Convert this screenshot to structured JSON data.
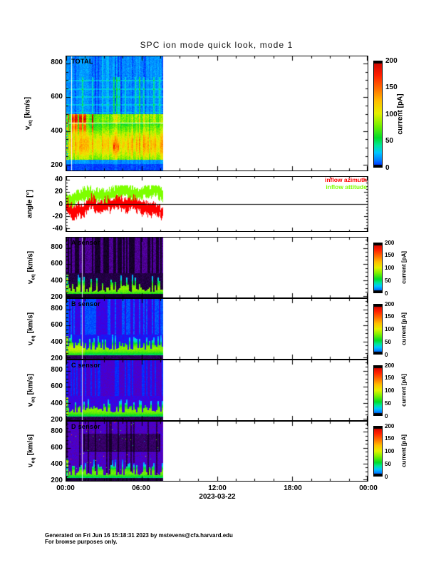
{
  "page": {
    "title": "SPC ion mode quick look, mode 1",
    "date_label": "2023-03-22",
    "footer_line1": "Generated on Fri Jun 16 15:18:31 2023 by mstevens@cfa.harvard.edu",
    "footer_line2": "For browse purposes only."
  },
  "axes": {
    "x_tick_labels": [
      "00:00",
      "06:00",
      "12:00",
      "18:00",
      "00:00"
    ],
    "speed_axis_label": {
      "base": "v",
      "sub": "eq",
      "unit": "[km/s]"
    },
    "angle_axis_label": "angle [°]",
    "colorbar_axis_label": "current [pA]"
  },
  "legend": {
    "inflow_azimuth": {
      "label": "inflow azimuth",
      "color": "#ff0000"
    },
    "inflow_attitude": {
      "label": "inflow attitude",
      "color": "#7dff00"
    }
  },
  "panels": [
    {
      "id": "total",
      "label": "TOTAL"
    },
    {
      "id": "angle",
      "label": ""
    },
    {
      "id": "sensor-a",
      "label": "A sensor"
    },
    {
      "id": "sensor-b",
      "label": "B sensor"
    },
    {
      "id": "sensor-c",
      "label": "C sensor"
    },
    {
      "id": "sensor-d",
      "label": "D sensor"
    }
  ],
  "chart_data": [
    {
      "panel": "TOTAL",
      "type": "heatmap",
      "x_axis": {
        "range_hours": [
          0,
          24
        ],
        "tick_labels": [
          "00:00",
          "06:00",
          "12:00",
          "18:00",
          "00:00"
        ],
        "date": "2023-03-22"
      },
      "y_axis": {
        "label": "v_eq [km/s]",
        "ticks": [
          200,
          400,
          600,
          800
        ],
        "range": [
          166,
          841
        ]
      },
      "colorbar": {
        "label": "current [pA]",
        "ticks": [
          0,
          50,
          100,
          150,
          200
        ],
        "range": [
          0,
          200
        ]
      },
      "data_coverage_hours": [
        0,
        7.7
      ],
      "features": {
        "enhanced_band_kms": [
          230,
          500
        ],
        "band_core_kms": [
          270,
          380
        ],
        "white_marker_line_kms": 448,
        "red_bursts": "currents approaching 150-200 pA near 380-500 km/s during the first ~3 hours",
        "background": "diffuse 10-40 pA cyan-blue signal from 500 to 840 km/s; blue below 230 km/s"
      }
    },
    {
      "panel": "angle",
      "type": "line",
      "y_axis": {
        "label": "angle [°]",
        "ticks": [
          -40,
          -20,
          0,
          20,
          40
        ],
        "range": [
          -45,
          45
        ]
      },
      "series": [
        {
          "name": "inflow azimuth",
          "color": "#ff0000",
          "approx_envelope_deg": [
            -26,
            20
          ],
          "approx_mean_deg": -6
        },
        {
          "name": "inflow attitude",
          "color": "#7dff00",
          "approx_envelope_deg": [
            -13,
            30
          ],
          "approx_mean_deg": 12
        }
      ],
      "zero_reference_line_deg": 0,
      "data_coverage_hours": [
        0,
        7.7
      ]
    },
    {
      "panel": "A sensor",
      "type": "heatmap",
      "y_axis": {
        "label": "v_eq [km/s]",
        "ticks": [
          200,
          400,
          600,
          800
        ],
        "range": [
          183,
          930
        ]
      },
      "colorbar": {
        "label": "current [pA]",
        "ticks": [
          0,
          50,
          100,
          150,
          200
        ],
        "range": [
          0,
          200
        ]
      },
      "data_coverage_hours": [
        0,
        7.7
      ],
      "features": {
        "background": "near-zero (black/violet) with intermittent faint violet patches above 500 km/s",
        "enhanced_band_kms": [
          240,
          500
        ],
        "band_character": "narrow intermittent green/cyan spikes peaking near 300 km/s"
      }
    },
    {
      "panel": "B sensor",
      "type": "heatmap",
      "y_axis": {
        "label": "v_eq [km/s]",
        "ticks": [
          200,
          400,
          600,
          800
        ],
        "range": [
          183,
          930
        ]
      },
      "colorbar": {
        "label": "current [pA]",
        "ticks": [
          0,
          50,
          100,
          150,
          200
        ],
        "range": [
          0,
          200
        ]
      },
      "data_coverage_hours": [
        0,
        7.7
      ],
      "features": {
        "background": "diffuse blue ~10-20 pA with violet patches above 500 km/s",
        "enhanced_band_kms": [
          240,
          490
        ],
        "band_character": "continuous green band 250-450 km/s"
      }
    },
    {
      "panel": "C sensor",
      "type": "heatmap",
      "y_axis": {
        "label": "v_eq [km/s]",
        "ticks": [
          200,
          400,
          600,
          800
        ],
        "range": [
          183,
          930
        ]
      },
      "colorbar": {
        "label": "current [pA]",
        "ticks": [
          0,
          50,
          100,
          150,
          200
        ],
        "range": [
          0,
          200
        ]
      },
      "data_coverage_hours": [
        0,
        7.7
      ],
      "features": {
        "background": "violet-blue mottled background",
        "enhanced_band_kms": [
          235,
          490
        ],
        "band_character": "continuous green band 250-420 km/s"
      }
    },
    {
      "panel": "D sensor",
      "type": "heatmap",
      "y_axis": {
        "label": "v_eq [km/s]",
        "ticks": [
          200,
          400,
          600,
          800
        ],
        "range": [
          183,
          930
        ]
      },
      "colorbar": {
        "label": "current [pA]",
        "ticks": [
          0,
          50,
          100,
          150,
          200
        ],
        "range": [
          0,
          200
        ]
      },
      "data_coverage_hours": [
        0,
        7.7
      ],
      "features": {
        "background": "violet mottled background with dark vertical dropouts and sparse bright speckles",
        "enhanced_band_kms": [
          230,
          460
        ],
        "band_character": "spiky green band 250-420 km/s; darker rectangular region near 560-780 km/s over most of the interval"
      }
    }
  ]
}
